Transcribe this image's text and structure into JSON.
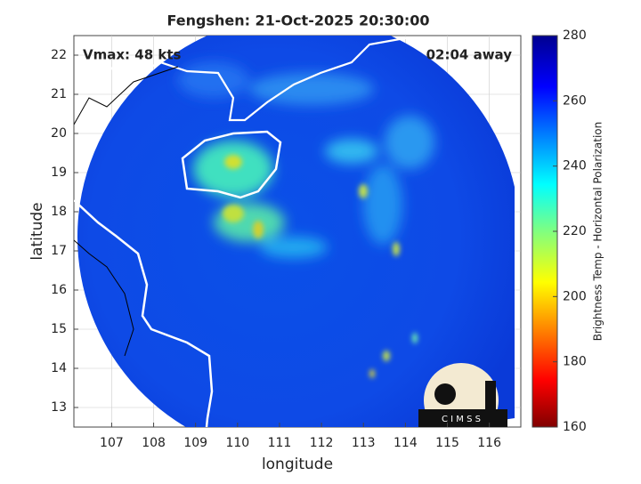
{
  "title": "Fengshen: 21-Oct-2025 20:30:00",
  "annotations": {
    "vmax": "Vmax: 48 kts",
    "time_away": "02:04 away"
  },
  "x_axis": {
    "label": "longitude",
    "lim": [
      106.1,
      116.75
    ],
    "ticks": [
      107,
      108,
      109,
      110,
      111,
      112,
      113,
      114,
      115,
      116
    ]
  },
  "y_axis": {
    "label": "latitude",
    "lim": [
      12.5,
      22.5
    ],
    "ticks": [
      13,
      14,
      15,
      16,
      17,
      18,
      19,
      20,
      21,
      22
    ]
  },
  "colorbar": {
    "label": "Brightness Temp - Horizontal Polarization",
    "lim": [
      160,
      280
    ],
    "ticks": [
      160,
      180,
      200,
      220,
      240,
      260,
      280
    ]
  },
  "logo": "C I M S S"
}
